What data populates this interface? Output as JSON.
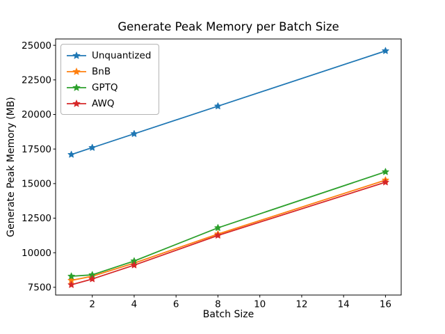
{
  "chart_data": {
    "type": "line",
    "title": "Generate Peak Memory per Batch Size",
    "xlabel": "Batch Size",
    "ylabel": "Generate Peak Memory (MB)",
    "x": [
      1,
      2,
      4,
      8,
      16
    ],
    "series": [
      {
        "name": "Unquantized",
        "color": "#1f77b4",
        "values": [
          17100,
          17600,
          18600,
          20600,
          24600
        ]
      },
      {
        "name": "BnB",
        "color": "#ff7f0e",
        "values": [
          8000,
          8300,
          9250,
          11350,
          15250
        ]
      },
      {
        "name": "GPTQ",
        "color": "#2ca02c",
        "values": [
          8300,
          8400,
          9400,
          11800,
          15850
        ]
      },
      {
        "name": "AWQ",
        "color": "#d62728",
        "values": [
          7680,
          8100,
          9100,
          11250,
          15100
        ]
      }
    ],
    "xticks": [
      2,
      4,
      6,
      8,
      10,
      12,
      14,
      16
    ],
    "yticks": [
      7500,
      10000,
      12500,
      15000,
      17500,
      20000,
      22500,
      25000
    ],
    "xlim": [
      0.25,
      16.75
    ],
    "ylim": [
      6940,
      25460
    ],
    "marker": "star",
    "grid": false,
    "legend_position": "upper-left",
    "axis_color": "#000000",
    "background_color": "#ffffff"
  }
}
